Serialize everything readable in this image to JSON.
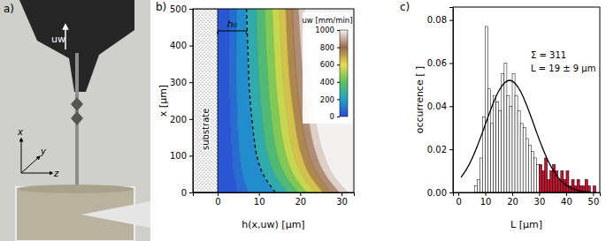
{
  "photo": {
    "label": "a)",
    "velocity_label": "uw",
    "axis_labels": [
      "x",
      "y",
      "z"
    ]
  },
  "chart_data": [
    {
      "type": "contour",
      "label": "b)",
      "xlabel": "h(x,uw) [µm]",
      "ylabel": "x [µm]",
      "xlim": [
        -6,
        33
      ],
      "xticks": [
        0,
        10,
        20,
        30
      ],
      "ylim": [
        0,
        500
      ],
      "yticks": [
        0,
        100,
        200,
        300,
        400,
        500
      ],
      "substrate_label": "substrate",
      "annotations": [
        {
          "text": "h₀",
          "from": 0,
          "to": 7
        }
      ],
      "x": [
        0,
        50,
        100,
        150,
        200,
        300,
        400,
        500
      ],
      "series": [
        {
          "level": 50,
          "values": [
            5.0,
            4.0,
            3.6,
            3.3,
            3.1,
            2.9,
            2.8,
            2.8
          ]
        },
        {
          "level": 100,
          "values": [
            7.5,
            6.0,
            5.4,
            5.0,
            4.8,
            4.6,
            4.5,
            4.5
          ]
        },
        {
          "level": 200,
          "line_style": "dashed",
          "values": [
            14.0,
            11.0,
            9.5,
            8.8,
            8.3,
            7.6,
            7.3,
            7.0
          ]
        },
        {
          "level": 300,
          "values": [
            17.0,
            13.8,
            12.2,
            11.3,
            10.8,
            10.0,
            9.6,
            9.4
          ]
        },
        {
          "level": 400,
          "values": [
            19.5,
            16.2,
            14.5,
            13.6,
            13.0,
            12.2,
            11.7,
            11.4
          ]
        },
        {
          "level": 500,
          "values": [
            21.5,
            18.3,
            16.6,
            15.6,
            15.0,
            14.1,
            13.6,
            13.2
          ]
        },
        {
          "level": 600,
          "values": [
            23.5,
            20.3,
            18.5,
            17.5,
            16.9,
            15.9,
            15.3,
            14.9
          ]
        },
        {
          "level": 700,
          "values": [
            25.5,
            22.2,
            20.4,
            19.3,
            18.6,
            17.5,
            16.9,
            16.5
          ]
        },
        {
          "level": 800,
          "values": [
            27.5,
            24.1,
            22.2,
            21.1,
            20.3,
            19.2,
            18.5,
            18.1
          ]
        },
        {
          "level": 900,
          "values": [
            29.5,
            26.0,
            24.0,
            22.8,
            22.0,
            20.8,
            20.1,
            19.6
          ]
        },
        {
          "level": 1000,
          "values": [
            31.5,
            27.8,
            25.8,
            24.5,
            23.6,
            22.3,
            21.5,
            21.0
          ]
        }
      ],
      "colorbar": {
        "title": "uw [mm/min]",
        "lim": [
          0,
          1000
        ],
        "ticks": [
          0,
          200,
          400,
          600,
          800,
          1000
        ],
        "colors": [
          "#2b4bd8",
          "#1fa3c8",
          "#5dc25a",
          "#e6de4a",
          "#9b6a4c",
          "#f4f2f0"
        ]
      }
    },
    {
      "type": "histogram",
      "label": "c)",
      "xlabel": "L [µm]",
      "ylabel": "occurrence [ ]",
      "xlim": [
        -2,
        52.5
      ],
      "xticks": [
        0,
        10,
        20,
        30,
        40,
        50
      ],
      "ylim": [
        0,
        0.086
      ],
      "yticks": [
        {
          "value": 0,
          "label": "0.00"
        },
        {
          "value": 0.02,
          "label": "0.02"
        },
        {
          "value": 0.04,
          "label": "0.04"
        },
        {
          "value": 0.06,
          "label": "0.06"
        },
        {
          "value": 0.08,
          "label": "0.08"
        }
      ],
      "bins": [
        6,
        7,
        8,
        9,
        10,
        11,
        12,
        13,
        14,
        15,
        16,
        17,
        18,
        19,
        20,
        21,
        22,
        23,
        24,
        25,
        26,
        27,
        28,
        29,
        30,
        31,
        32,
        33,
        34,
        35,
        36,
        37,
        38,
        39,
        40,
        41,
        42,
        43,
        44,
        45,
        46,
        47,
        48,
        49,
        50,
        51
      ],
      "values": [
        0.003,
        0.006,
        0.016,
        0.035,
        0.077,
        0.048,
        0.032,
        0.045,
        0.042,
        0.038,
        0.055,
        0.06,
        0.045,
        0.04,
        0.055,
        0.045,
        0.038,
        0.032,
        0.03,
        0.025,
        0.022,
        0.019,
        0.016,
        0.013,
        0.013,
        0.01,
        0.016,
        0.006,
        0.01,
        0.013,
        0.01,
        0.006,
        0.01,
        0.006,
        0.01,
        0.003,
        0.006,
        0.003,
        0.006,
        0.003,
        0.003,
        0.006,
        0.003,
        0,
        0.003
      ],
      "colors": [
        "#ffffff",
        "#ffffff",
        "#ffffff",
        "#ffffff",
        "#ffffff",
        "#ffffff",
        "#ffffff",
        "#ffffff",
        "#ffffff",
        "#ffffff",
        "#ffffff",
        "#ffffff",
        "#ffffff",
        "#ffffff",
        "#ffffff",
        "#ffffff",
        "#ffffff",
        "#ffffff",
        "#ffffff",
        "#ffffff",
        "#ffffff",
        "#ffffff",
        "#ffffff",
        "#ffffff",
        "#c8102e",
        "#c8102e",
        "#c8102e",
        "#c8102e",
        "#c8102e",
        "#c8102e",
        "#c8102e",
        "#c8102e",
        "#c8102e",
        "#c8102e",
        "#c8102e",
        "#c8102e",
        "#c8102e",
        "#c8102e",
        "#c8102e",
        "#c8102e",
        "#c8102e",
        "#c8102e",
        "#c8102e",
        "#c8102e",
        "#c8102e"
      ],
      "annotations": [
        "Σ = 311",
        "L = 19 ± 9 µm"
      ],
      "series": [
        {
          "type": "line",
          "color": "#000000",
          "x": [
            1,
            3,
            5,
            7,
            9,
            11,
            13,
            15,
            17,
            19,
            21,
            23,
            25,
            27,
            29,
            31,
            33,
            35,
            37,
            39,
            41,
            43,
            45,
            47,
            49
          ],
          "values": [
            0.007,
            0.0107,
            0.0155,
            0.0214,
            0.028,
            0.035,
            0.0416,
            0.0471,
            0.0507,
            0.052,
            0.0507,
            0.0471,
            0.0416,
            0.035,
            0.028,
            0.0214,
            0.0155,
            0.0107,
            0.007,
            0.0044,
            0.0026,
            0.0015,
            0.0008,
            0.0004,
            0.0002
          ]
        }
      ]
    }
  ]
}
